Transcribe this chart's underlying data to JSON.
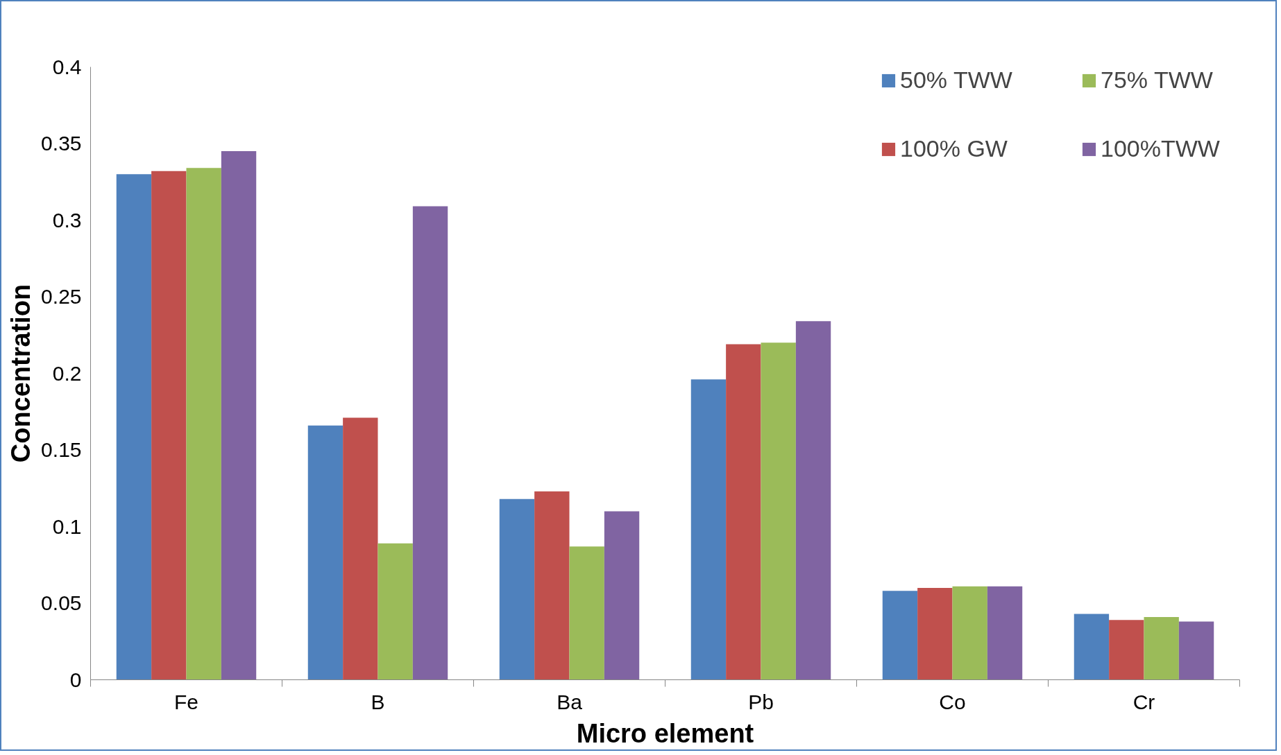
{
  "chart_data": {
    "type": "bar",
    "xlabel": "Micro element",
    "ylabel": "Concentration",
    "categories": [
      "Fe",
      "B",
      "Ba",
      "Pb",
      "Co",
      "Cr"
    ],
    "series": [
      {
        "name": "50% TWW",
        "color": "#4f81bd",
        "values": [
          0.33,
          0.166,
          0.118,
          0.196,
          0.058,
          0.043
        ]
      },
      {
        "name": "100% GW",
        "color": "#c0504d",
        "values": [
          0.332,
          0.171,
          0.123,
          0.219,
          0.06,
          0.039
        ]
      },
      {
        "name": "75% TWW",
        "color": "#9bbb59",
        "values": [
          0.334,
          0.089,
          0.087,
          0.22,
          0.061,
          0.041
        ]
      },
      {
        "name": "100%TWW",
        "color": "#8064a2",
        "values": [
          0.345,
          0.309,
          0.11,
          0.234,
          0.061,
          0.038
        ]
      }
    ],
    "ylim": [
      0,
      0.4
    ],
    "yticks": [
      0,
      0.05,
      0.1,
      0.15,
      0.2,
      0.25,
      0.3,
      0.35,
      0.4
    ],
    "grid": false,
    "legend": "top right"
  }
}
